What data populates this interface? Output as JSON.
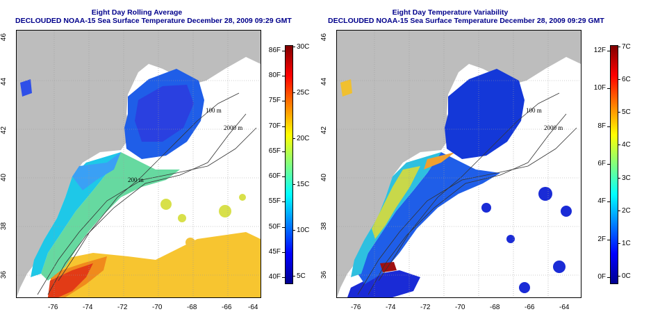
{
  "panels": [
    {
      "id": "avg",
      "title_line1": "Eight Day Rolling Average",
      "title_line2": "DECLOUDED NOAA-15 Sea Surface Temperature December 28, 2009 09:29 GMT",
      "colorbar": {
        "left_labels": [
          "86F",
          "80F",
          "75F",
          "70F",
          "65F",
          "60F",
          "55F",
          "50F",
          "45F",
          "40F"
        ],
        "right_labels": [
          "30C",
          "25C",
          "20C",
          "15C",
          "10C",
          "5C"
        ],
        "colors": [
          "#00008f",
          "#0000ff",
          "#0080ff",
          "#00ffff",
          "#80ff80",
          "#ffff00",
          "#ff8000",
          "#ff0000",
          "#800000"
        ]
      }
    },
    {
      "id": "var",
      "title_line1": "Eight Day Temperature Variability",
      "title_line2": "DECLOUDED NOAA-15 Sea Surface Temperature December 28, 2009 09:29 GMT",
      "colorbar": {
        "left_labels": [
          "12F",
          "10F",
          "8F",
          "6F",
          "4F",
          "2F",
          "0F"
        ],
        "right_labels": [
          "7C",
          "6C",
          "5C",
          "4C",
          "3C",
          "2C",
          "1C",
          "0C"
        ],
        "colors": [
          "#00008f",
          "#0000ff",
          "#0080ff",
          "#00ffff",
          "#80ff80",
          "#ffff00",
          "#ff8000",
          "#ff0000",
          "#800000"
        ]
      }
    }
  ],
  "axes": {
    "x_labels": [
      "-76",
      "-74",
      "-72",
      "-70",
      "-68",
      "-66",
      "-64"
    ],
    "y_labels": [
      "46",
      "44",
      "42",
      "40",
      "38",
      "36"
    ]
  },
  "contour_labels": {
    "m100": "100 m",
    "m200": "200 m",
    "m2000": "2000 m"
  },
  "colors": {
    "land": "#bdbdbd",
    "water_blank": "#ffffff",
    "title": "#00008b"
  }
}
